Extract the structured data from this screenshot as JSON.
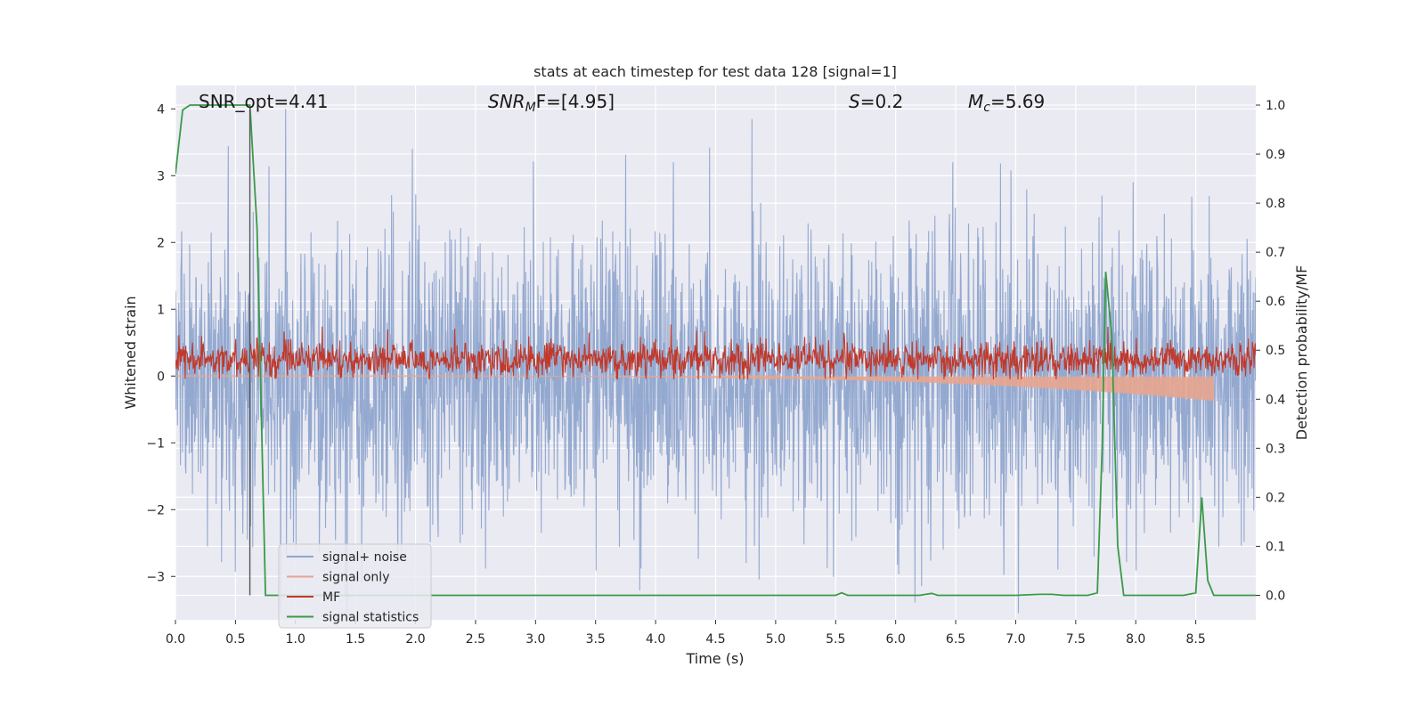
{
  "chart_data": {
    "type": "line",
    "title": "stats at each timestep for test data 128 [signal=1]",
    "xlabel": "Time (s)",
    "ylabel_left": "Whitened strain",
    "ylabel_right": "Detection probability/MF",
    "xlim": [
      0.0,
      9.0
    ],
    "ylim_left": [
      -3.65,
      4.35
    ],
    "ylim_right": [
      -0.05,
      1.04
    ],
    "xticks": [
      "0.0",
      "0.5",
      "1.0",
      "1.5",
      "2.0",
      "2.5",
      "3.0",
      "3.5",
      "4.0",
      "4.5",
      "5.0",
      "5.5",
      "6.0",
      "6.5",
      "7.0",
      "7.5",
      "8.0",
      "8.5"
    ],
    "yticks_left": [
      "4",
      "3",
      "2",
      "1",
      "0",
      "−1",
      "−2",
      "−3"
    ],
    "yticks_right": [
      "1.0",
      "0.9",
      "0.8",
      "0.7",
      "0.6",
      "0.5",
      "0.4",
      "0.3",
      "0.2",
      "0.1",
      "0.0"
    ],
    "grid": true,
    "legend_position": "lower-left",
    "annotations": {
      "snr_opt": "SNR_opt=4.41",
      "snr_mf_label": "SNR",
      "snr_mf_sub": "M",
      "snr_mf_tail": "F=[4.95]",
      "s_label": "S",
      "s_value": "=0.2",
      "mc_label": "M",
      "mc_sub": "c",
      "mc_value": "=5.69"
    },
    "vertical_line_x": 0.62,
    "series": [
      {
        "name": "signal+ noise",
        "color": "#8fa5cd",
        "axis": "left",
        "description_type": "noisy whitened strain, roughly gaussian, amplitude about ±1.5 with spikes to ±3.6"
      },
      {
        "name": "signal only",
        "color": "#e8a58e",
        "axis": "left",
        "chirp_start": 0.0,
        "chirp_end": 8.65,
        "chirp_peak_amplitude": -0.38
      },
      {
        "name": "MF",
        "color": "#c0392b",
        "axis": "left",
        "baseline": 0.25
      },
      {
        "name": "signal statistics",
        "color": "#3a9a48",
        "axis": "right",
        "x": [
          0.0,
          0.06,
          0.12,
          0.2,
          0.3,
          0.4,
          0.5,
          0.55,
          0.62,
          0.68,
          0.75,
          0.8,
          1.0,
          2.0,
          3.0,
          4.0,
          5.0,
          5.4,
          5.5,
          5.55,
          5.6,
          5.7,
          6.0,
          6.2,
          6.3,
          6.35,
          6.4,
          6.6,
          7.0,
          7.2,
          7.3,
          7.4,
          7.5,
          7.6,
          7.68,
          7.72,
          7.75,
          7.8,
          7.85,
          7.9,
          8.0,
          8.2,
          8.4,
          8.5,
          8.55,
          8.6,
          8.65,
          8.7,
          8.8,
          9.0
        ],
        "values": [
          0.86,
          0.99,
          1.0,
          1.0,
          1.0,
          1.0,
          1.0,
          1.0,
          1.0,
          0.75,
          0.0,
          0.0,
          0.0,
          0.0,
          0.0,
          0.0,
          0.0,
          0.0,
          0.0,
          0.005,
          0.0,
          0.0,
          0.0,
          0.0,
          0.004,
          0.0,
          0.0,
          0.0,
          0.0,
          0.002,
          0.002,
          0.0,
          0.0,
          0.0,
          0.005,
          0.3,
          0.66,
          0.53,
          0.1,
          0.0,
          0.0,
          0.0,
          0.0,
          0.005,
          0.2,
          0.03,
          0.0,
          0.0,
          0.0,
          0.0
        ]
      }
    ]
  },
  "colors": {
    "axes_bg": "#eaeaf2",
    "grid": "#ffffff",
    "vline": "#555555"
  }
}
